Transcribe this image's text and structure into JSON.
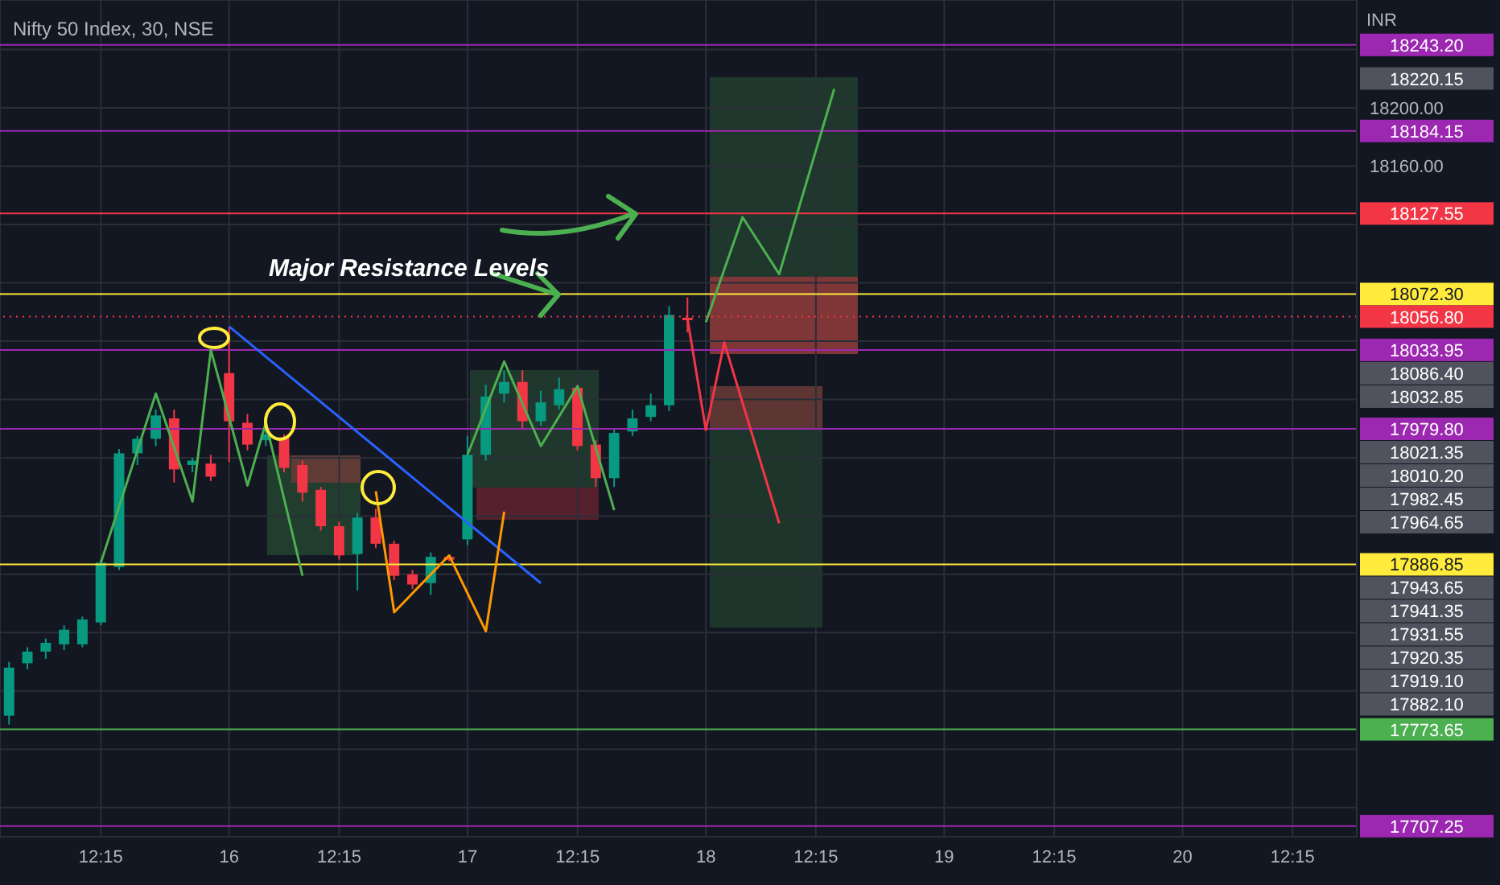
{
  "chart_data": {
    "type": "candlestick",
    "title": "Nifty 50 Index, 30, NSE",
    "ylabel": "INR",
    "categories": [
      null,
      null,
      null,
      null,
      null,
      "12:15",
      null,
      null,
      null,
      null,
      null,
      null,
      "16",
      null,
      null,
      null,
      null,
      null,
      "12:15",
      null,
      null,
      null,
      null,
      null,
      null,
      "17",
      null,
      null,
      null,
      null,
      null,
      "12:15",
      null,
      null,
      null,
      null,
      null,
      null,
      "18",
      null,
      null,
      null,
      null,
      null,
      "12:15",
      null,
      null,
      null,
      null,
      null,
      null,
      "19",
      null,
      null,
      null,
      null,
      null,
      "12:15",
      null,
      null,
      null,
      null,
      null,
      null,
      "20",
      null,
      null,
      null,
      null,
      null,
      "12:15",
      null,
      null,
      null
    ],
    "ohlc": [
      [
        17783,
        17820,
        17777,
        17816
      ],
      [
        17819,
        17830,
        17815,
        17827
      ],
      [
        17827,
        17836,
        17822,
        17833
      ],
      [
        17832,
        17845,
        17828,
        17842
      ],
      [
        17832,
        17851,
        17830,
        17849
      ],
      [
        17847,
        17890,
        17845,
        17888
      ],
      [
        17885,
        17966,
        17883,
        17963
      ],
      [
        17963,
        17975,
        17955,
        17973
      ],
      [
        17973,
        17993,
        17968,
        17989
      ],
      [
        17987,
        17993,
        17943,
        17952
      ],
      [
        17955,
        17960,
        17950,
        17958
      ],
      [
        17956,
        17962,
        17944,
        17947
      ],
      [
        18018,
        18050,
        17957,
        17985
      ],
      [
        17984,
        17990,
        17965,
        17969
      ],
      [
        17972,
        17980,
        17968,
        17976
      ],
      [
        17974,
        17976,
        17950,
        17953
      ],
      [
        17955,
        17958,
        17930,
        17936
      ],
      [
        17938,
        17940,
        17910,
        17913
      ],
      [
        17913,
        17916,
        17890,
        17893
      ],
      [
        17894,
        17922,
        17869,
        17919
      ],
      [
        17919,
        17925,
        17898,
        17901
      ],
      [
        17901,
        17903,
        17876,
        17879
      ],
      [
        17880,
        17883,
        17870,
        17873
      ],
      [
        17874,
        17895,
        17866,
        17892
      ],
      [
        17892,
        17893,
        17889,
        17890
      ],
      [
        17904,
        17975,
        17900,
        17962
      ],
      [
        17962,
        18010,
        17958,
        18002
      ],
      [
        18004,
        18020,
        17998,
        18012
      ],
      [
        18012,
        18020,
        17980,
        17985
      ],
      [
        17985,
        18006,
        17982,
        17998
      ],
      [
        17996,
        18015,
        17993,
        18007
      ],
      [
        18008,
        18010,
        17965,
        17968
      ],
      [
        17969,
        17972,
        17940,
        17946
      ],
      [
        17946,
        17980,
        17940,
        17977
      ],
      [
        17978,
        17993,
        17975,
        17987
      ],
      [
        17988,
        18004,
        17985,
        17996
      ],
      [
        17996,
        18064,
        17992,
        18058
      ],
      [
        18056,
        18070,
        18046,
        18055
      ],
      null,
      null,
      null,
      null,
      null,
      null,
      null,
      null,
      null,
      null,
      null,
      null,
      null,
      null,
      null,
      null,
      null,
      null,
      null,
      null,
      null,
      null,
      null,
      null,
      null,
      null,
      null,
      null,
      null,
      null,
      null,
      null,
      null,
      null,
      null,
      null
    ],
    "colors": [
      "#089981",
      "#089981",
      "#089981",
      "#089981",
      "#089981",
      "#089981",
      "#089981",
      "#089981",
      "#089981",
      "#f23645",
      "#089981",
      "#f23645",
      "#f23645",
      "#f23645",
      "#089981",
      "#f23645",
      "#f23645",
      "#f23645",
      "#f23645",
      "#089981",
      "#f23645",
      "#f23645",
      "#f23645",
      "#089981",
      "#f23645",
      "#089981",
      "#089981",
      "#089981",
      "#f23645",
      "#089981",
      "#089981",
      "#f23645",
      "#f23645",
      "#089981",
      "#089981",
      "#089981",
      "#089981",
      "#f23645",
      null,
      null,
      null,
      null,
      null,
      null,
      null,
      null,
      null,
      null,
      null,
      null,
      null,
      null,
      null,
      null,
      null,
      null,
      null,
      null,
      null,
      null,
      null,
      null,
      null,
      null,
      null,
      null,
      null,
      null,
      null,
      null,
      null,
      null,
      null,
      null
    ],
    "series": [
      {
        "type": "line",
        "color": "#2962ff",
        "values": [
          null,
          null,
          null,
          null,
          null,
          null,
          null,
          null,
          null,
          null,
          null,
          null,
          18050,
          null,
          null,
          null,
          null,
          null,
          null,
          null,
          null,
          null,
          null,
          null,
          null,
          null,
          null,
          null,
          null,
          17874,
          null,
          null,
          null,
          null,
          null,
          null,
          null,
          null,
          null,
          null,
          null,
          null,
          null,
          null,
          null,
          null,
          null,
          null,
          null,
          null,
          null,
          null,
          null,
          null,
          null,
          null,
          null,
          null,
          null,
          null,
          null,
          null,
          null,
          null,
          null,
          null,
          null,
          null,
          null,
          null,
          null,
          null,
          null,
          null
        ]
      },
      {
        "type": "line",
        "color": "#4caf50",
        "values": [
          null,
          null,
          null,
          null,
          null,
          17888,
          null,
          null,
          18004,
          null,
          17930,
          18034,
          null,
          17941,
          17984,
          null,
          17879,
          null,
          null,
          null,
          null,
          null,
          null,
          null,
          null,
          null,
          null,
          null,
          null,
          null,
          null,
          null,
          null,
          null,
          null,
          null,
          null,
          null,
          null,
          null,
          null,
          null,
          null,
          null,
          null,
          null,
          null,
          null,
          null,
          null,
          null,
          null,
          null,
          null,
          null,
          null,
          null,
          null,
          null,
          null,
          null,
          null,
          null,
          null,
          null,
          null,
          null,
          null,
          null,
          null,
          null,
          null,
          null,
          null
        ]
      },
      {
        "type": "line",
        "color": "#4caf50",
        "values": [
          null,
          null,
          null,
          null,
          null,
          null,
          null,
          null,
          null,
          null,
          null,
          null,
          null,
          null,
          null,
          null,
          null,
          null,
          null,
          null,
          null,
          null,
          null,
          null,
          null,
          17962,
          null,
          18026,
          null,
          17968,
          null,
          18009,
          null,
          17924,
          null,
          null,
          null,
          null,
          null,
          null,
          null,
          null,
          null,
          null,
          null,
          null,
          null,
          null,
          null,
          null,
          null,
          null,
          null,
          null,
          null,
          null,
          null,
          null,
          null,
          null,
          null,
          null,
          null,
          null,
          null,
          null,
          null,
          null,
          null,
          null,
          null,
          null,
          null,
          null
        ]
      },
      {
        "type": "line",
        "color": "#ff9800",
        "values": [
          null,
          null,
          null,
          null,
          null,
          null,
          null,
          null,
          null,
          null,
          null,
          null,
          null,
          null,
          null,
          null,
          null,
          null,
          null,
          null,
          17937,
          17854,
          null,
          null,
          17893,
          null,
          17841,
          17923,
          null,
          null,
          null,
          null,
          null,
          null,
          null,
          null,
          null,
          null,
          null,
          null,
          null,
          null,
          null,
          null,
          null,
          null,
          null,
          null,
          null,
          null,
          null,
          null,
          null,
          null,
          null,
          null,
          null,
          null,
          null,
          null,
          null,
          null,
          null,
          null,
          null,
          null,
          null,
          null,
          null,
          null,
          null,
          null,
          null,
          null
        ]
      },
      {
        "type": "line",
        "color": "#4caf50",
        "values": [
          null,
          null,
          null,
          null,
          null,
          null,
          null,
          null,
          null,
          null,
          null,
          null,
          null,
          null,
          null,
          null,
          null,
          null,
          null,
          null,
          null,
          null,
          null,
          null,
          null,
          null,
          null,
          null,
          null,
          null,
          null,
          null,
          null,
          null,
          null,
          null,
          null,
          null,
          18053,
          null,
          18125,
          null,
          18086,
          null,
          null,
          18213,
          null,
          null,
          null,
          null,
          null,
          null,
          null,
          null,
          null,
          null,
          null,
          null,
          null,
          null,
          null,
          null,
          null,
          null,
          null,
          null,
          null,
          null,
          null,
          null,
          null,
          null,
          null,
          null
        ]
      },
      {
        "type": "line",
        "color": "#f23645",
        "values": [
          null,
          null,
          null,
          null,
          null,
          null,
          null,
          null,
          null,
          null,
          null,
          null,
          null,
          null,
          null,
          null,
          null,
          null,
          null,
          null,
          null,
          null,
          null,
          null,
          null,
          null,
          null,
          null,
          null,
          null,
          null,
          null,
          null,
          null,
          null,
          null,
          null,
          18055,
          17979,
          18039,
          null,
          null,
          17915,
          null,
          null,
          null,
          null,
          null,
          null,
          null,
          null,
          null,
          null,
          null,
          null,
          null,
          null,
          null,
          null,
          null,
          null,
          null,
          null,
          null,
          null,
          null,
          null,
          null,
          null,
          null,
          null,
          null,
          null,
          null
        ]
      }
    ],
    "ylim": [
      17700,
      18274
    ],
    "yticks": [
      {
        "value": 17720,
        "label": null
      },
      {
        "value": 17760,
        "label": null
      },
      {
        "value": 17800,
        "label": null
      },
      {
        "value": 17840,
        "label": null
      },
      {
        "value": 17880,
        "label": null
      },
      {
        "value": 17920,
        "label": null
      },
      {
        "value": 17960,
        "label": null
      },
      {
        "value": 18000,
        "label": null
      },
      {
        "value": 18040,
        "label": null
      },
      {
        "value": 18080,
        "label": null
      },
      {
        "value": 18120,
        "label": null
      },
      {
        "value": 18160,
        "label": "18160.00"
      },
      {
        "value": 18200,
        "label": "18200.00"
      },
      {
        "value": 18240,
        "label": null
      }
    ],
    "grid": true,
    "ref_lines": [
      {
        "axis": "y",
        "value": 18243.2,
        "label": "18243.20",
        "color": "#9c27b0"
      },
      {
        "axis": "y",
        "value": 18184.15,
        "label": "18184.15",
        "color": "#9c27b0"
      },
      {
        "axis": "y",
        "value": 18127.55,
        "label": "18127.55",
        "color": "#f23645"
      },
      {
        "axis": "y",
        "value": 18072.3,
        "label": "18072.30",
        "color": "#ffeb3b"
      },
      {
        "axis": "y",
        "value": 18056.8,
        "label": "18056.80",
        "color": "#f23645",
        "line_style": "dotted"
      },
      {
        "axis": "y",
        "value": 18033.95,
        "label": "18033.95",
        "color": "#9c27b0"
      },
      {
        "axis": "y",
        "value": 17979.8,
        "label": "17979.80",
        "color": "#9c27b0"
      },
      {
        "axis": "y",
        "value": 17886.85,
        "label": "17886.85",
        "color": "#ffeb3b"
      },
      {
        "axis": "y",
        "value": 17773.65,
        "label": "17773.65",
        "color": "#4caf50"
      },
      {
        "axis": "y",
        "value": 17707.25,
        "label": "17707.25",
        "color": "#9c27b0"
      }
    ],
    "annotations": [
      {
        "text": "Major Resistance Levels",
        "y": 18072.3
      },
      "18220.15",
      "18086.40",
      "18032.85",
      "18021.35",
      "18010.20",
      "17982.45",
      "17964.65",
      "17943.65",
      "17941.35",
      "17931.55",
      "17920.35",
      "17919.10",
      "17882.10"
    ]
  }
}
